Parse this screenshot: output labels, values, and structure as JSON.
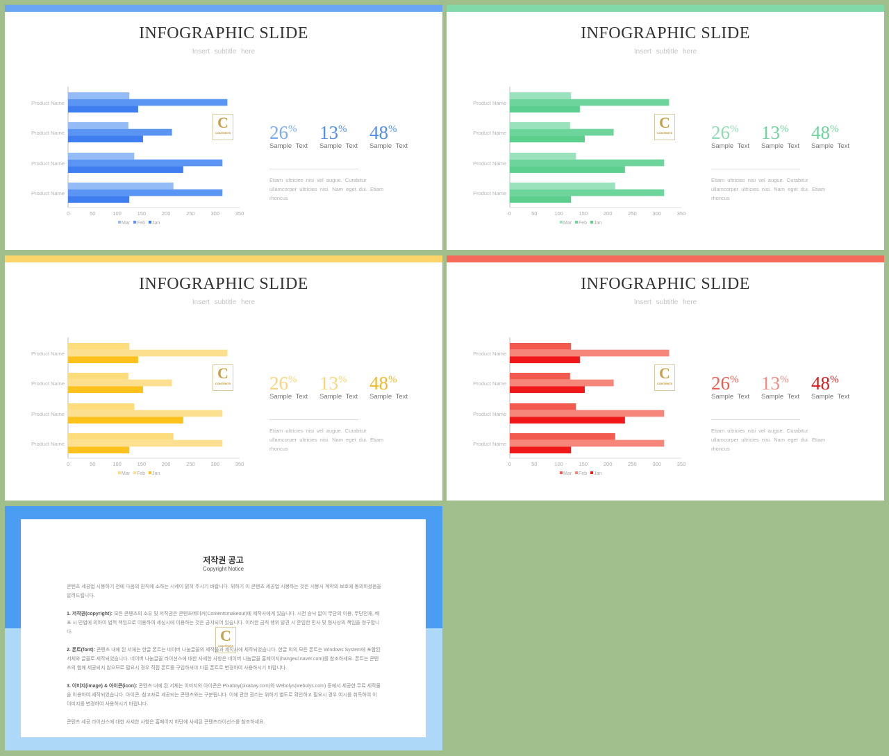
{
  "slides": [
    {
      "theme": "blue",
      "title": "INFOGRAPHIC SLIDE",
      "subtitle": "Insert  subtitle  here",
      "bar_color": "#6aa4f5",
      "colors": {
        "mar": "#93bcf7",
        "feb": "#5a95f3",
        "jan": "#3f7ef0"
      },
      "stat_colors": [
        "#7aaaf2",
        "#4f8def",
        "#4f8def"
      ],
      "logo": {
        "letter": "C",
        "text": "CONTENTS"
      },
      "stats": [
        {
          "value": "26",
          "unit": "%",
          "label": "Sample  Text"
        },
        {
          "value": "13",
          "unit": "%",
          "label": "Sample  Text"
        },
        {
          "value": "48",
          "unit": "%",
          "label": "Sample  Text"
        }
      ],
      "description": "Etiam ultricies nisi vel augue. Curabitur ullamcorper ultricies nisi. Nam eget dui. Etiam rhoncus"
    },
    {
      "theme": "green",
      "title": "INFOGRAPHIC SLIDE",
      "subtitle": "Insert  subtitle  here",
      "bar_color": "#7fd9a8",
      "colors": {
        "mar": "#99e2bb",
        "feb": "#6dd59c",
        "jan": "#5ccf8f"
      },
      "stat_colors": [
        "#8fdcb3",
        "#6dd59c",
        "#6dd59c"
      ],
      "logo": {
        "letter": "C",
        "text": "CONTENTS"
      },
      "stats": [
        {
          "value": "26",
          "unit": "%",
          "label": "Sample  Text"
        },
        {
          "value": "13",
          "unit": "%",
          "label": "Sample  Text"
        },
        {
          "value": "48",
          "unit": "%",
          "label": "Sample  Text"
        }
      ],
      "description": "Etiam ultricies nisi vel augue. Curabitur ullamcorper ultricies nisi. Nam eget dui. Etiam rhoncus"
    },
    {
      "theme": "yellow",
      "title": "INFOGRAPHIC SLIDE",
      "subtitle": "Insert  subtitle  here",
      "bar_color": "#fbd46a",
      "colors": {
        "mar": "#fddc7c",
        "feb": "#fde08f",
        "jan": "#fcc21b"
      },
      "stat_colors": [
        "#fcd57a",
        "#fcd57a",
        "#f0b92a"
      ],
      "logo": {
        "letter": "C",
        "text": "CONTENTS"
      },
      "stats": [
        {
          "value": "26",
          "unit": "%",
          "label": "Sample  Text"
        },
        {
          "value": "13",
          "unit": "%",
          "label": "Sample  Text"
        },
        {
          "value": "48",
          "unit": "%",
          "label": "Sample  Text"
        }
      ],
      "description": "Etiam ultricies nisi vel augue. Curabitur ullamcorper ultricies nisi. Nam eget dui. Etiam rhoncus"
    },
    {
      "theme": "red",
      "title": "INFOGRAPHIC SLIDE",
      "subtitle": "Insert  subtitle  here",
      "bar_color": "#f66a5a",
      "colors": {
        "mar": "#f25a50",
        "feb": "#f7867a",
        "jan": "#f01818"
      },
      "stat_colors": [
        "#ef5a4e",
        "#f28a80",
        "#d91d1d"
      ],
      "logo": {
        "letter": "C",
        "text": "CONTENTS"
      },
      "stats": [
        {
          "value": "26",
          "unit": "%",
          "label": "Sample  Text"
        },
        {
          "value": "13",
          "unit": "%",
          "label": "Sample  Text"
        },
        {
          "value": "48",
          "unit": "%",
          "label": "Sample  Text"
        }
      ],
      "description": "Etiam ultricies nisi vel augue. Curabitur ullamcorper ultricies nisi. Nam eget dui. Etiam rhoncus"
    }
  ],
  "chart_data": {
    "type": "bar",
    "orientation": "horizontal",
    "categories": [
      "Product Name",
      "Product Name",
      "Product Name",
      "Product Name"
    ],
    "series": [
      {
        "name": "Mar",
        "values": [
          125,
          123,
          135,
          215
        ]
      },
      {
        "name": "Feb",
        "values": [
          325,
          212,
          315,
          315
        ]
      },
      {
        "name": "Jan",
        "values": [
          143,
          153,
          235,
          125
        ]
      }
    ],
    "xlim": [
      0,
      350
    ],
    "xticks": [
      "0",
      "50",
      "100",
      "150",
      "200",
      "250",
      "300",
      "350"
    ],
    "legend": [
      "Mar",
      "Feb",
      "Jan"
    ],
    "legend_position": "bottom",
    "grid": false
  },
  "notice": {
    "title": "저작권 공고",
    "subtitle": "Copyright Notice",
    "logo": {
      "letter": "C",
      "text": "CONTENTS"
    },
    "intro": "콘텐츠 세공업 시봉하기 전에 다음의 원칙에 소하는 시세이 밝혀 주시기 바랍니다. 위하기 이 콘텐츠 세공업 시봉하는 것은 시봉시 계약의 보호에 동의하셨음을 알려드립니다.",
    "p1_head": "1. 저작권(copyright):",
    "p1": " 모든 콘텐츠의 소유 및 저작권은 콘텐츠메이커(Contentsmakeout)에 제작사에게 있습니다. 시전 승낙 없이 무단의 이용, 무단전재, 배포 시 민법에 의하여 법적 책임으로 이용하여 세심시에 이용하는 것은 금지되어 있습니다. 이러한 금칙 행위 발견 시 준임한 민사 및 형사상의 책임을 청구합니다.",
    "p2_head": "2. 폰트(font):",
    "p2": " 콘텐츠 내에 된 서체는 한글 폰트는 네이버 나눔글꼴의 세작들과 제작사에 세작되었습니다. 한글 외의 모든 폰트는 Windows System에 포함된 서체와 글꼴로 세작되었습니다. 네이버 나눔글꼴 라이선스에 대한 사세한 사항은 네이버 나눔글꼴 홈페이지(hangeul.naver.com)를 참조하세요. 폰트는 콘텐츠의 함께 세공되지 않으므로 필요시 경우 직접 폰트를 구입하셔야 다른 폰트로 변경하여 사용하시기 바랍니다.",
    "p3_head": "3. 이미지(image) & 아이콘(icon):",
    "p3": " 콘텐츠 내에 된 서체는 이미지와 아이콘은 Pixabay(pixabay.com)와 Webolys(webolys.com) 등에서 세공한 무료 세작물을 이용하여 세작되었습니다. 아이콘, 참고자료 세공되는 콘텐츠와는 구분됩니다. 이에 관한 권리는 위하기 별도로 확인하고 필요시 경우 여시를 취득하여 이 이미지를 변경하여 사용하시기 바랍니다.",
    "outro": "콘텐츠 세공 라이선스에 대한 사세한 사항은 홈페이지 하단에 사세된 콘텐츠라이선스를 참조하세요."
  }
}
